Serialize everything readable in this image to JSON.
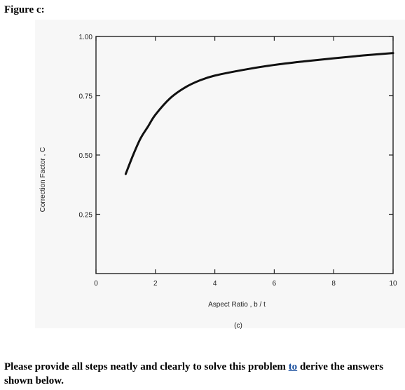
{
  "figure_title": "Figure c:",
  "footer": {
    "text_before": "Please provide all steps neatly and clearly to solve this problem ",
    "link": "to",
    "text_after": " derive the answers shown below."
  },
  "chart_data": {
    "type": "line",
    "title": "",
    "xlabel": "Aspect Ratio , b / t",
    "ylabel": "Correction Factor , C",
    "caption": "(c)",
    "xlim": [
      0,
      10
    ],
    "ylim": [
      0,
      1.0
    ],
    "x_ticks": [
      "0",
      "2",
      "4",
      "6",
      "8",
      "10"
    ],
    "y_ticks": [
      "0.25",
      "0.50",
      "0.75",
      "1.00"
    ],
    "grid": false,
    "series": [
      {
        "x": [
          1.0,
          1.25,
          1.5,
          1.75,
          2.0,
          2.5,
          3.0,
          3.5,
          4.0,
          5.0,
          6.0,
          7.0,
          8.0,
          9.0,
          10.0
        ],
        "y": [
          0.42,
          0.5,
          0.57,
          0.62,
          0.67,
          0.74,
          0.785,
          0.815,
          0.835,
          0.86,
          0.88,
          0.895,
          0.908,
          0.92,
          0.93
        ]
      }
    ]
  }
}
